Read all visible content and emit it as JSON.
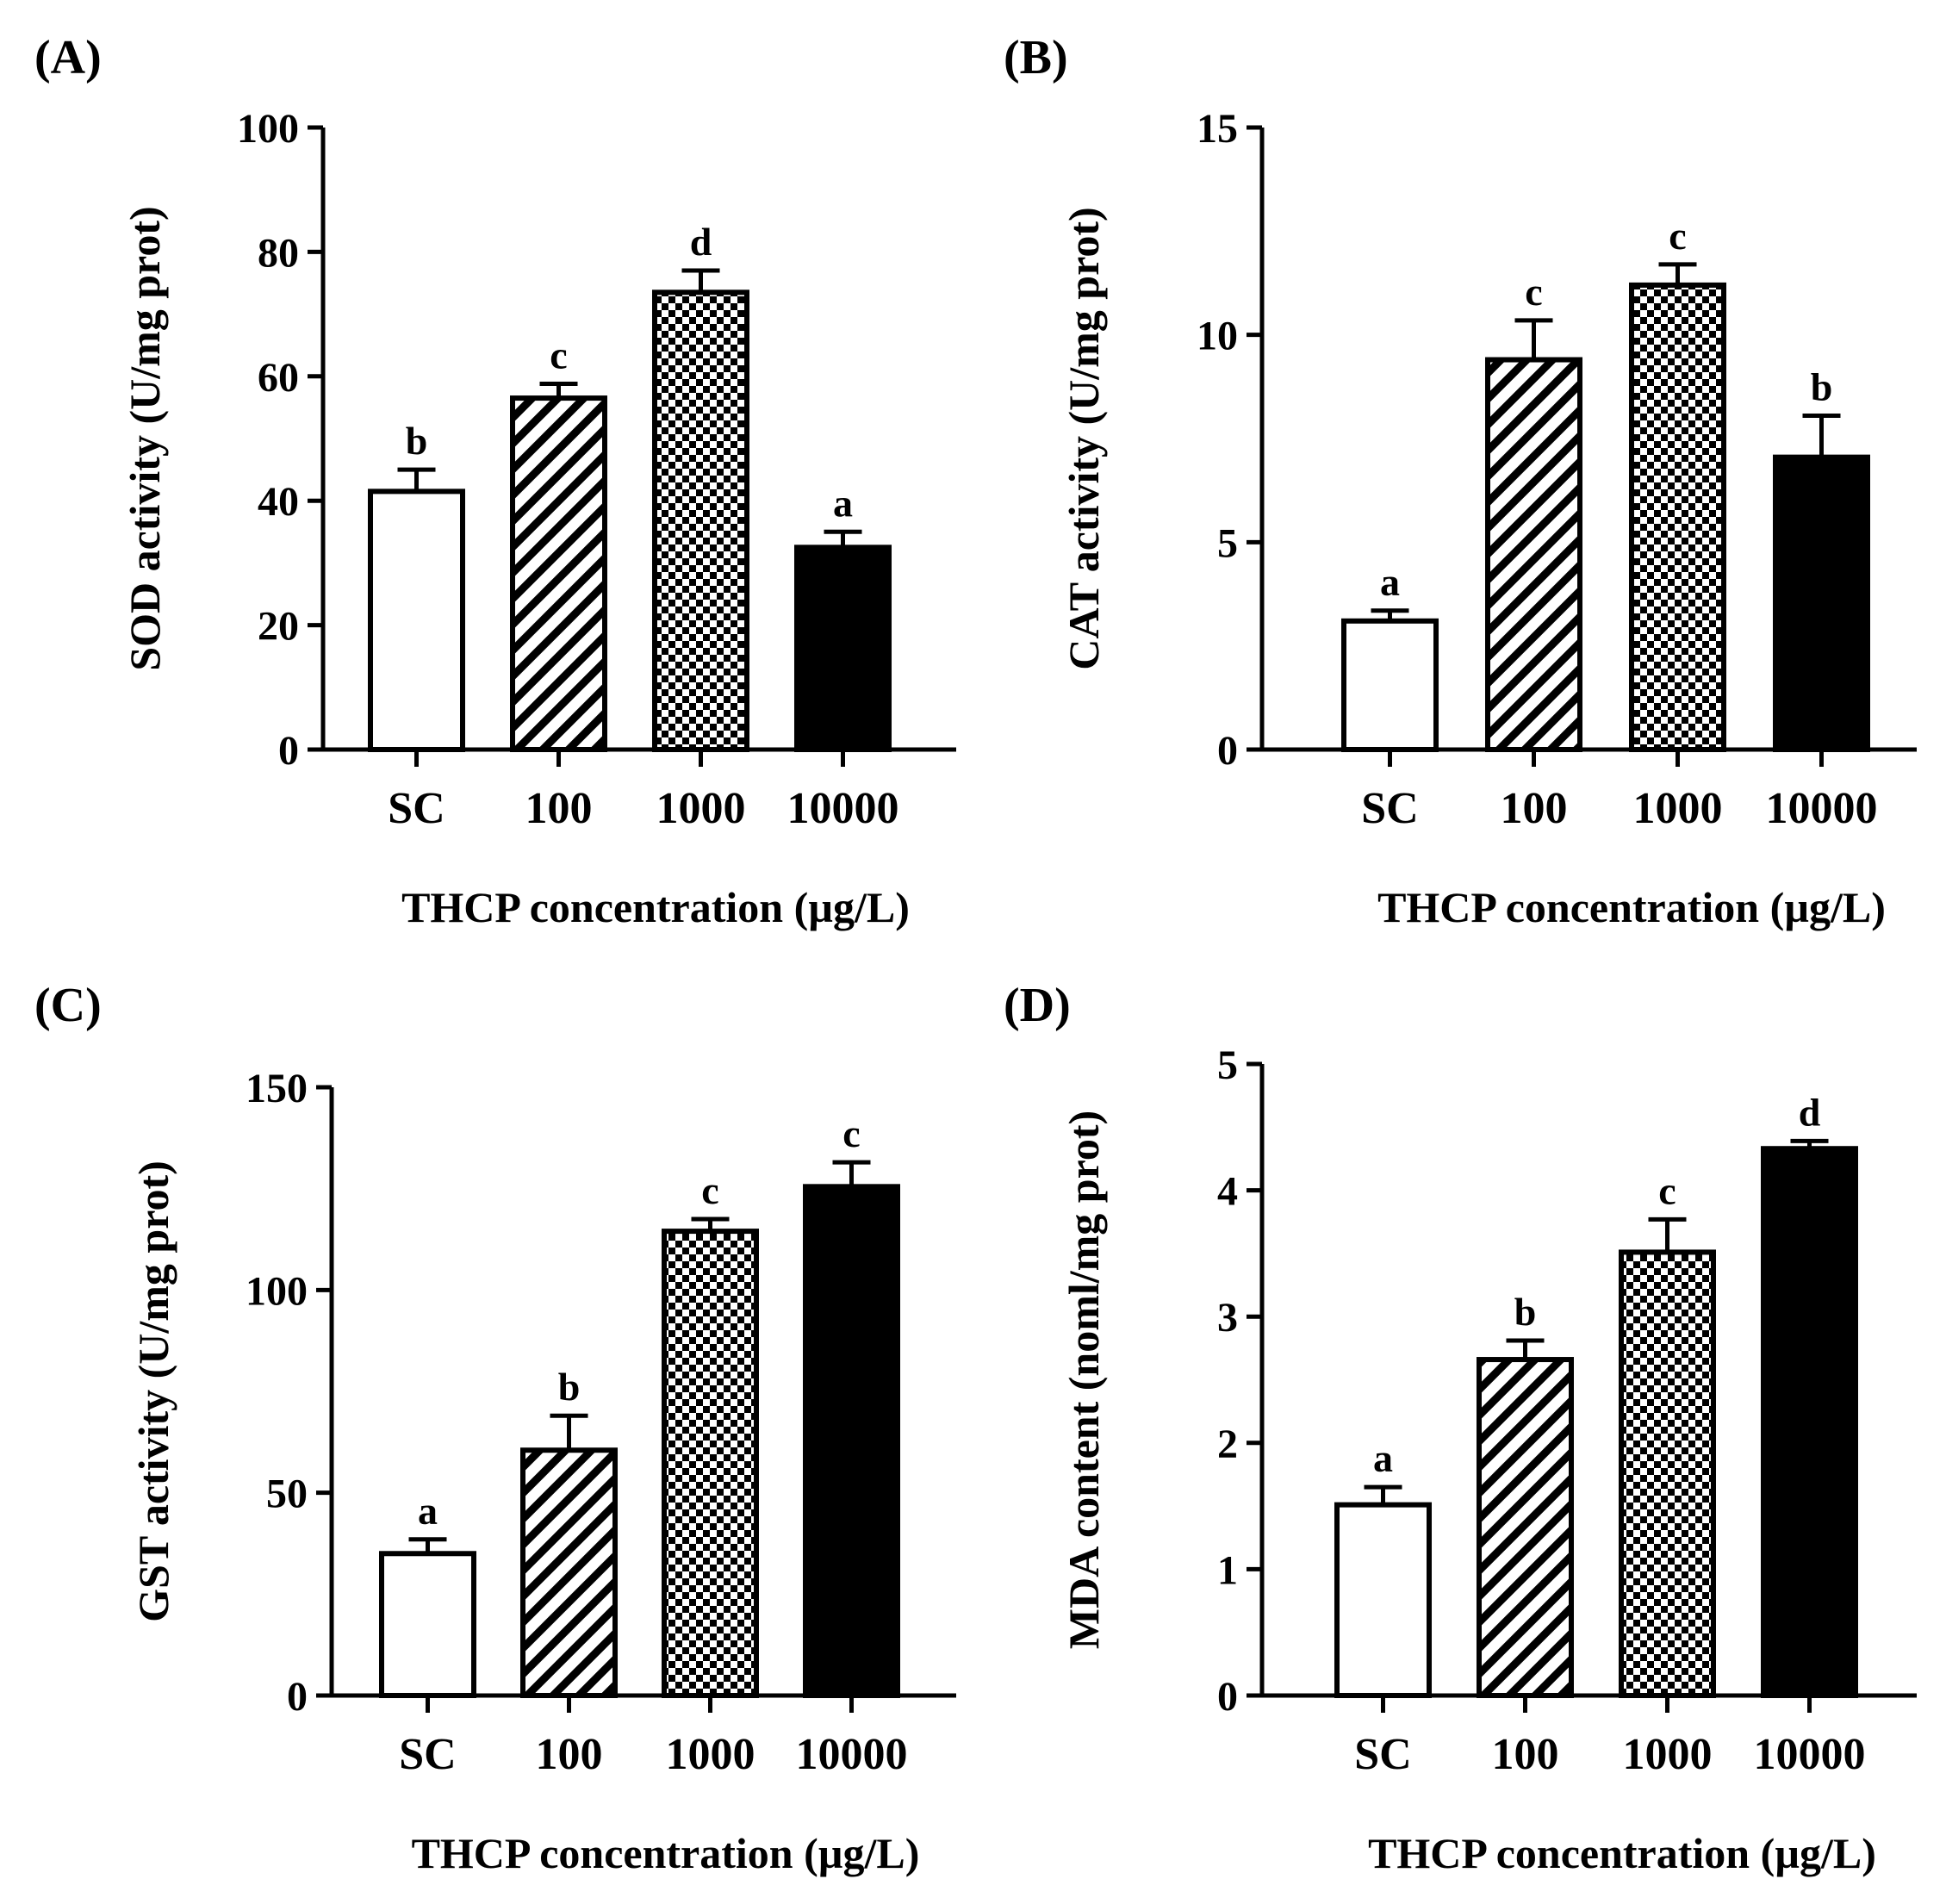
{
  "chart_data": [
    {
      "panel": "(A)",
      "type": "bar",
      "categories": [
        "SC",
        "100",
        "1000",
        "10000"
      ],
      "values": [
        41.5,
        56.5,
        73.5,
        32.5
      ],
      "errors": [
        3.5,
        2.3,
        3.5,
        2.5
      ],
      "significance": [
        "b",
        "c",
        "d",
        "a"
      ],
      "ylabel": "SOD activity (U/mg prot)",
      "xlabel": "THCP concentration (µg/L)",
      "ylim": [
        0,
        100
      ],
      "yticks": [
        "0",
        "20",
        "40",
        "60",
        "80",
        "100"
      ],
      "ytick_values": [
        0,
        20,
        40,
        60,
        80,
        100
      ],
      "patterns": [
        "white",
        "hatch",
        "checker",
        "black"
      ]
    },
    {
      "panel": "(B)",
      "type": "bar",
      "categories": [
        "SC",
        "100",
        "1000",
        "10000"
      ],
      "values": [
        3.1,
        9.4,
        11.2,
        7.05
      ],
      "errors": [
        0.25,
        0.95,
        0.5,
        1.0
      ],
      "significance": [
        "a",
        "c",
        "c",
        "b"
      ],
      "ylabel": "CAT activity (U/mg prot)",
      "xlabel": "THCP concentration (µg/L)",
      "ylim": [
        0,
        15
      ],
      "yticks": [
        "0",
        "5",
        "10",
        "15"
      ],
      "ytick_values": [
        0,
        5,
        10,
        15
      ],
      "patterns": [
        "white",
        "hatch",
        "checker",
        "black"
      ]
    },
    {
      "panel": "(C)",
      "type": "bar",
      "categories": [
        "SC",
        "100",
        "1000",
        "10000"
      ],
      "values": [
        35,
        60.5,
        114.5,
        125.5
      ],
      "errors": [
        3.5,
        8.5,
        3.0,
        6.0
      ],
      "significance": [
        "a",
        "b",
        "c",
        "c"
      ],
      "ylabel": "GST activity (U/mg prot)",
      "xlabel": "THCP concentration (µg/L)",
      "ylim": [
        0,
        150
      ],
      "yticks": [
        "0",
        "50",
        "100",
        "150"
      ],
      "ytick_values": [
        0,
        50,
        100,
        150
      ],
      "patterns": [
        "white",
        "hatch",
        "checker",
        "black"
      ]
    },
    {
      "panel": "(D)",
      "type": "bar",
      "categories": [
        "SC",
        "100",
        "1000",
        "10000"
      ],
      "values": [
        1.51,
        2.66,
        3.51,
        4.33
      ],
      "errors": [
        0.14,
        0.15,
        0.26,
        0.06
      ],
      "significance": [
        "a",
        "b",
        "c",
        "d"
      ],
      "ylabel": "MDA content (noml/mg prot)",
      "xlabel": "THCP concentration (µg/L)",
      "ylim": [
        0,
        5
      ],
      "yticks": [
        "0",
        "1",
        "2",
        "3",
        "4",
        "5"
      ],
      "ytick_values": [
        0,
        1,
        2,
        3,
        4,
        5
      ],
      "patterns": [
        "white",
        "hatch",
        "checker",
        "black"
      ]
    }
  ]
}
